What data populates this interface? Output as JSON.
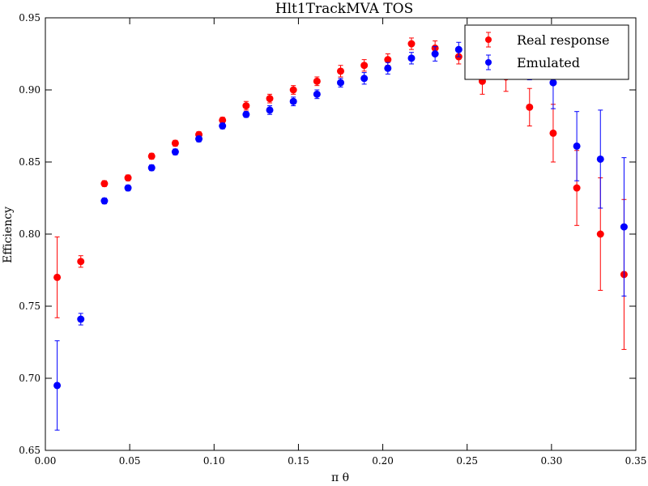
{
  "chart_data": {
    "type": "scatter",
    "title": "Hlt1TrackMVA TOS",
    "xlabel": "π θ",
    "ylabel": "Efficiency",
    "xlim": [
      0.0,
      0.35
    ],
    "ylim": [
      0.65,
      0.95
    ],
    "xticks": [
      "0.00",
      "0.05",
      "0.10",
      "0.15",
      "0.20",
      "0.25",
      "0.30",
      "0.35"
    ],
    "yticks": [
      "0.65",
      "0.70",
      "0.75",
      "0.80",
      "0.85",
      "0.90",
      "0.95"
    ],
    "grid": false,
    "legend_position": "top-right",
    "series": [
      {
        "name": "Real response",
        "color": "#ff0000",
        "x": [
          0.007,
          0.021,
          0.035,
          0.049,
          0.063,
          0.077,
          0.091,
          0.105,
          0.119,
          0.133,
          0.147,
          0.161,
          0.175,
          0.189,
          0.203,
          0.217,
          0.231,
          0.245,
          0.259,
          0.273,
          0.287,
          0.301,
          0.315,
          0.329,
          0.343
        ],
        "y": [
          0.77,
          0.781,
          0.835,
          0.839,
          0.854,
          0.863,
          0.869,
          0.879,
          0.889,
          0.894,
          0.9,
          0.906,
          0.913,
          0.917,
          0.921,
          0.932,
          0.929,
          0.923,
          0.906,
          0.909,
          0.888,
          0.87,
          0.832,
          0.8,
          0.772
        ],
        "yerr": [
          0.028,
          0.004,
          0.002,
          0.002,
          0.002,
          0.002,
          0.002,
          0.002,
          0.003,
          0.003,
          0.003,
          0.003,
          0.004,
          0.004,
          0.004,
          0.004,
          0.005,
          0.005,
          0.009,
          0.01,
          0.013,
          0.02,
          0.026,
          0.039,
          0.052
        ]
      },
      {
        "name": "Emulated",
        "color": "#0000ff",
        "x": [
          0.007,
          0.021,
          0.035,
          0.049,
          0.063,
          0.077,
          0.091,
          0.105,
          0.119,
          0.133,
          0.147,
          0.161,
          0.175,
          0.189,
          0.203,
          0.217,
          0.231,
          0.245,
          0.259,
          0.273,
          0.287,
          0.301,
          0.315,
          0.329,
          0.343
        ],
        "y": [
          0.695,
          0.741,
          0.823,
          0.832,
          0.846,
          0.857,
          0.866,
          0.875,
          0.883,
          0.886,
          0.892,
          0.897,
          0.905,
          0.908,
          0.915,
          0.922,
          0.925,
          0.928,
          0.923,
          0.921,
          0.916,
          0.905,
          0.861,
          0.852,
          0.805
        ],
        "yerr": [
          0.031,
          0.004,
          0.002,
          0.002,
          0.002,
          0.002,
          0.002,
          0.002,
          0.002,
          0.003,
          0.003,
          0.003,
          0.003,
          0.004,
          0.004,
          0.004,
          0.005,
          0.005,
          0.006,
          0.007,
          0.009,
          0.018,
          0.024,
          0.034,
          0.048
        ]
      }
    ]
  }
}
